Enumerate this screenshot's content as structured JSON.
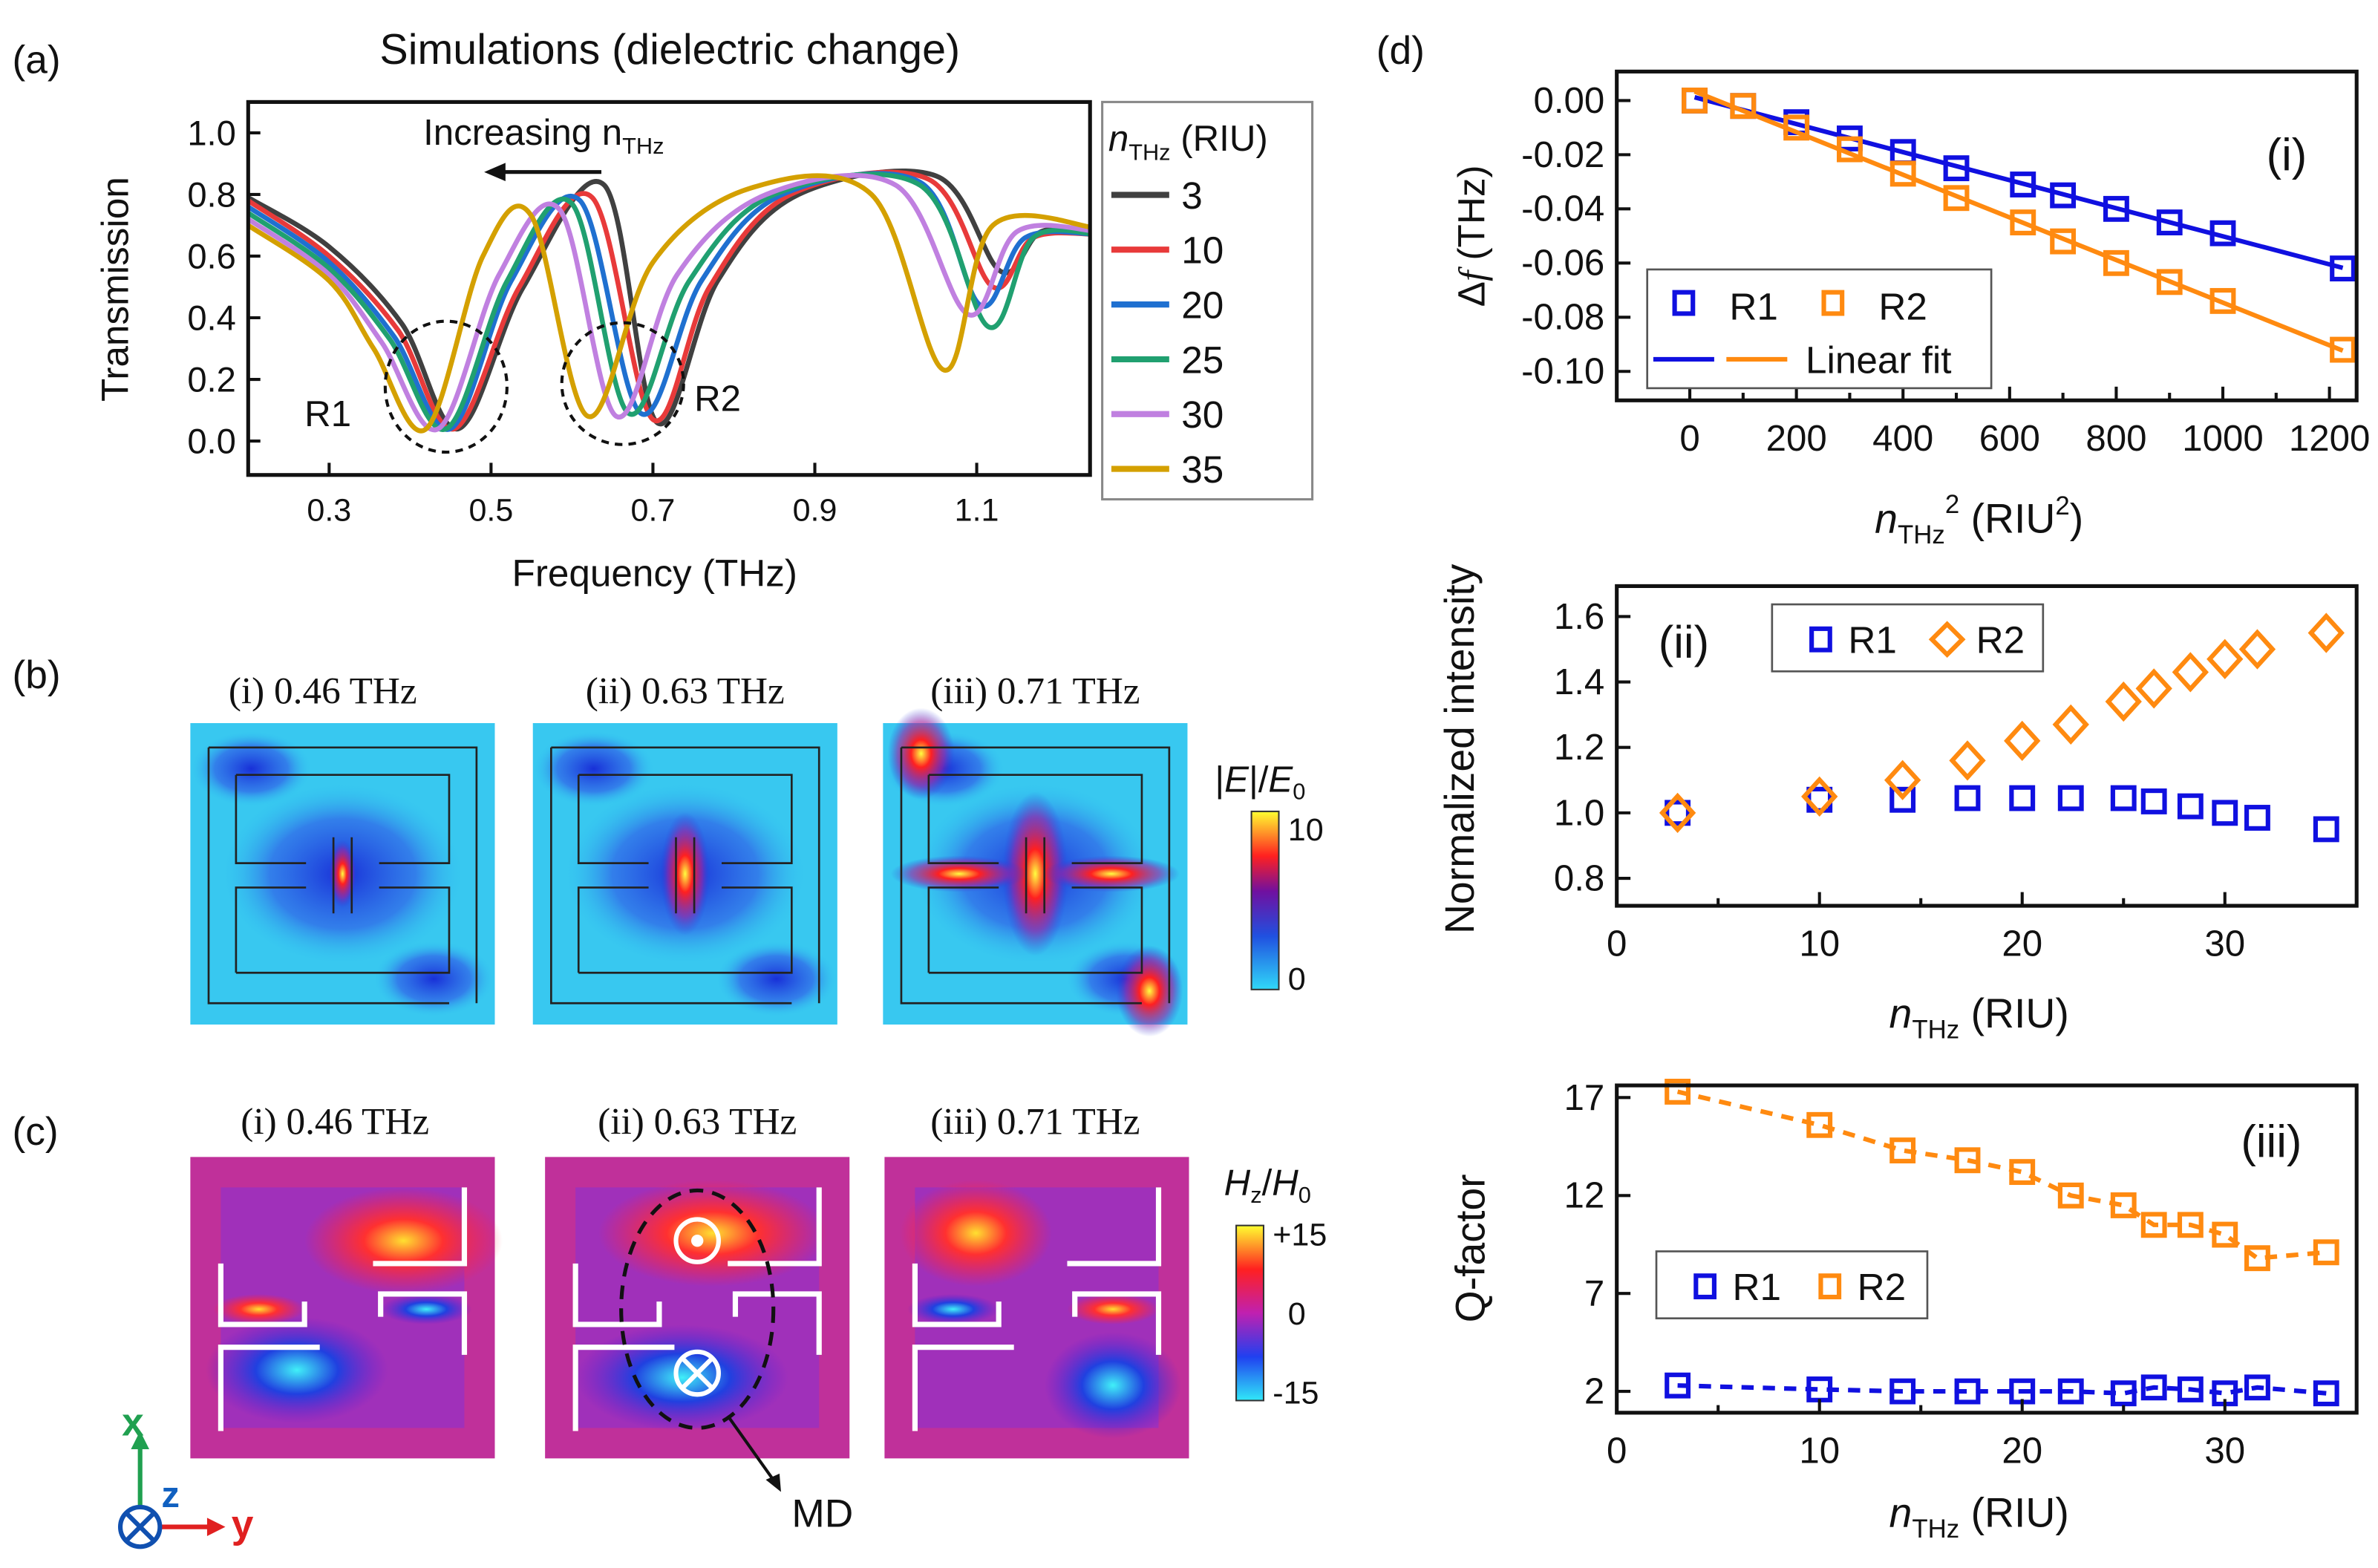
{
  "colors": {
    "r1": "#1010e0",
    "r2": "#ff8a10",
    "frame": "#111111"
  },
  "panel_labels": {
    "a": "(a)",
    "b": "(b)",
    "c": "(c)",
    "d": "(d)"
  },
  "panel_b": {
    "titles": [
      "(i) 0.46 THz",
      "(ii) 0.63 THz",
      "(iii) 0.71 THz"
    ],
    "colorbar": {
      "label_pre": "|",
      "label_e": "E",
      "label_mid": "|/",
      "label_e0": "E",
      "label_sub": "0",
      "max": "10",
      "min": "0"
    }
  },
  "panel_c": {
    "titles": [
      "(i) 0.46 THz",
      "(ii) 0.63 THz",
      "(iii) 0.71 THz"
    ],
    "colorbar": {
      "label_h": "H",
      "label_hsub": "z",
      "label_slash": "/",
      "label_h0": "H",
      "label_h0sub": "0",
      "max": "+15",
      "mid": "0",
      "min": "-15"
    },
    "md_label": "MD",
    "axes": {
      "x": "x",
      "y": "y",
      "z": "z"
    }
  },
  "chart_data": [
    {
      "id": "a",
      "type": "line",
      "title": "Simulations (dielectric change)",
      "xlabel": "Frequency (THz)",
      "ylabel": "Transmission",
      "xlim": [
        0.2,
        1.24
      ],
      "ylim": [
        -0.11,
        1.1
      ],
      "xticks": [
        "0.3",
        "0.5",
        "0.7",
        "0.9",
        "1.1"
      ],
      "yticks": [
        "0.0",
        "0.2",
        "0.4",
        "0.6",
        "0.8",
        "1.0"
      ],
      "annotation": {
        "text": "Increasing n",
        "sub": "THz"
      },
      "resonance_labels": [
        "R1",
        "R2"
      ],
      "legend": {
        "title_n": "n",
        "title_sub": "THz",
        "title_unit": " (RIU)",
        "placement": "right-outside"
      },
      "series": [
        {
          "name": "3",
          "color": "#404040",
          "points": [
            [
              0.2,
              0.79
            ],
            [
              0.3,
              0.63
            ],
            [
              0.39,
              0.38
            ],
            [
              0.46,
              0.04
            ],
            [
              0.54,
              0.5
            ],
            [
              0.64,
              0.83
            ],
            [
              0.705,
              0.06
            ],
            [
              0.78,
              0.52
            ],
            [
              0.88,
              0.8
            ],
            [
              1.05,
              0.86
            ],
            [
              1.13,
              0.55
            ],
            [
              1.18,
              0.68
            ],
            [
              1.25,
              0.68
            ]
          ]
        },
        {
          "name": "10",
          "color": "#e83a3a",
          "points": [
            [
              0.2,
              0.78
            ],
            [
              0.3,
              0.6
            ],
            [
              0.385,
              0.36
            ],
            [
              0.455,
              0.04
            ],
            [
              0.535,
              0.5
            ],
            [
              0.625,
              0.79
            ],
            [
              0.7,
              0.07
            ],
            [
              0.77,
              0.5
            ],
            [
              0.87,
              0.8
            ],
            [
              1.04,
              0.85
            ],
            [
              1.12,
              0.5
            ],
            [
              1.17,
              0.66
            ],
            [
              1.25,
              0.67
            ]
          ]
        },
        {
          "name": "20",
          "color": "#1f70d0",
          "points": [
            [
              0.2,
              0.76
            ],
            [
              0.3,
              0.58
            ],
            [
              0.38,
              0.34
            ],
            [
              0.45,
              0.04
            ],
            [
              0.525,
              0.52
            ],
            [
              0.61,
              0.78
            ],
            [
              0.685,
              0.09
            ],
            [
              0.76,
              0.52
            ],
            [
              0.86,
              0.8
            ],
            [
              1.03,
              0.84
            ],
            [
              1.105,
              0.44
            ],
            [
              1.16,
              0.66
            ],
            [
              1.25,
              0.67
            ]
          ]
        },
        {
          "name": "25",
          "color": "#20a070",
          "points": [
            [
              0.2,
              0.74
            ],
            [
              0.3,
              0.56
            ],
            [
              0.375,
              0.33
            ],
            [
              0.445,
              0.04
            ],
            [
              0.52,
              0.52
            ],
            [
              0.6,
              0.77
            ],
            [
              0.67,
              0.09
            ],
            [
              0.745,
              0.52
            ],
            [
              0.85,
              0.8
            ],
            [
              1.03,
              0.83
            ],
            [
              1.115,
              0.37
            ],
            [
              1.17,
              0.66
            ],
            [
              1.25,
              0.67
            ]
          ]
        },
        {
          "name": "30",
          "color": "#c080e0",
          "points": [
            [
              0.2,
              0.72
            ],
            [
              0.3,
              0.54
            ],
            [
              0.365,
              0.32
            ],
            [
              0.435,
              0.04
            ],
            [
              0.51,
              0.54
            ],
            [
              0.585,
              0.75
            ],
            [
              0.655,
              0.08
            ],
            [
              0.73,
              0.54
            ],
            [
              0.84,
              0.8
            ],
            [
              1.0,
              0.83
            ],
            [
              1.09,
              0.41
            ],
            [
              1.15,
              0.68
            ],
            [
              1.25,
              0.68
            ]
          ]
        },
        {
          "name": "35",
          "color": "#d4a000",
          "points": [
            [
              0.2,
              0.7
            ],
            [
              0.3,
              0.52
            ],
            [
              0.355,
              0.3
            ],
            [
              0.42,
              0.04
            ],
            [
              0.49,
              0.6
            ],
            [
              0.55,
              0.73
            ],
            [
              0.62,
              0.08
            ],
            [
              0.7,
              0.58
            ],
            [
              0.82,
              0.82
            ],
            [
              0.97,
              0.8
            ],
            [
              1.06,
              0.23
            ],
            [
              1.12,
              0.7
            ],
            [
              1.25,
              0.69
            ]
          ]
        }
      ]
    },
    {
      "id": "d-i",
      "type": "scatter",
      "panel_tag": "(i)",
      "ylabel_pre": "Δ",
      "ylabel_var": "f",
      "ylabel_unit": " (THz)",
      "xlabel": {
        "n": "n",
        "sub": "THz",
        "sup": "2",
        "unit": " (RIU",
        "unit_sup": "2",
        "close": ")"
      },
      "xlim": [
        -137,
        1251
      ],
      "ylim": [
        -0.1107,
        0.0107
      ],
      "xticks": [
        0,
        200,
        400,
        600,
        800,
        1000,
        1200
      ],
      "yticks": [
        "0.00",
        "-0.02",
        "-0.04",
        "-0.06",
        "-0.08",
        "-0.10"
      ],
      "legend": {
        "r1": "R1",
        "r2": "R2",
        "fit": "Linear fit",
        "placement": "bottom-left"
      },
      "x": [
        9,
        100,
        200,
        300,
        400,
        500,
        625,
        700,
        800,
        900,
        1000,
        1225
      ],
      "series": [
        {
          "name": "R1",
          "marker": "square",
          "fit": "linear",
          "values": [
            0,
            -0.002,
            -0.008,
            -0.014,
            -0.019,
            -0.025,
            -0.031,
            -0.035,
            -0.04,
            -0.045,
            -0.049,
            -0.062
          ]
        },
        {
          "name": "R2",
          "marker": "square",
          "fit": "linear",
          "values": [
            0,
            -0.002,
            -0.01,
            -0.018,
            -0.027,
            -0.036,
            -0.045,
            -0.052,
            -0.06,
            -0.067,
            -0.074,
            -0.092
          ]
        }
      ]
    },
    {
      "id": "d-ii",
      "type": "scatter",
      "panel_tag": "(ii)",
      "ylabel": "Normalized intensity",
      "xlabel": {
        "n": "n",
        "sub": "THz",
        "unit": " (RIU)"
      },
      "xlim": [
        0,
        36.5
      ],
      "ylim": [
        0.716,
        1.693
      ],
      "xticks": [
        0,
        10,
        20,
        30
      ],
      "yticks": [
        "0.8",
        "1.0",
        "1.2",
        "1.4",
        "1.6"
      ],
      "legend": {
        "r1": "R1",
        "r2": "R2",
        "placement": "top-left"
      },
      "x": [
        3,
        10,
        14.1,
        17.3,
        20,
        22.4,
        25,
        26.5,
        28.3,
        30,
        31.6,
        35
      ],
      "series": [
        {
          "name": "R1",
          "marker": "square",
          "values": [
            1.0,
            1.04,
            1.04,
            1.045,
            1.045,
            1.045,
            1.045,
            1.035,
            1.02,
            1.0,
            0.985,
            0.95
          ]
        },
        {
          "name": "R2",
          "marker": "diamond",
          "values": [
            1.0,
            1.05,
            1.1,
            1.16,
            1.22,
            1.27,
            1.34,
            1.38,
            1.43,
            1.47,
            1.5,
            1.55
          ]
        }
      ]
    },
    {
      "id": "d-iii",
      "type": "scatter",
      "panel_tag": "(iii)",
      "ylabel": "Q-factor",
      "xlabel": {
        "n": "n",
        "sub": "THz",
        "unit": " (RIU)"
      },
      "xlim": [
        0,
        36.5
      ],
      "ylim": [
        0.91,
        17.62
      ],
      "xticks": [
        0,
        10,
        20,
        30
      ],
      "yticks": [
        "2",
        "7",
        "12",
        "17"
      ],
      "legend": {
        "r1": "R1",
        "r2": "R2",
        "placement": "center-left"
      },
      "x": [
        3,
        10,
        14.1,
        17.3,
        20,
        22.4,
        25,
        26.5,
        28.3,
        30,
        31.6,
        35
      ],
      "series": [
        {
          "name": "R1",
          "marker": "square",
          "fit": "dashed",
          "values": [
            2.3,
            2.1,
            2.0,
            2.0,
            2.0,
            2.0,
            1.9,
            2.2,
            2.1,
            1.9,
            2.2,
            1.9
          ]
        },
        {
          "name": "R2",
          "marker": "square",
          "fit": "dashed",
          "values": [
            17.3,
            15.6,
            14.3,
            13.8,
            13.2,
            12.0,
            11.5,
            10.5,
            10.5,
            10.0,
            8.8,
            9.1
          ]
        }
      ]
    }
  ]
}
